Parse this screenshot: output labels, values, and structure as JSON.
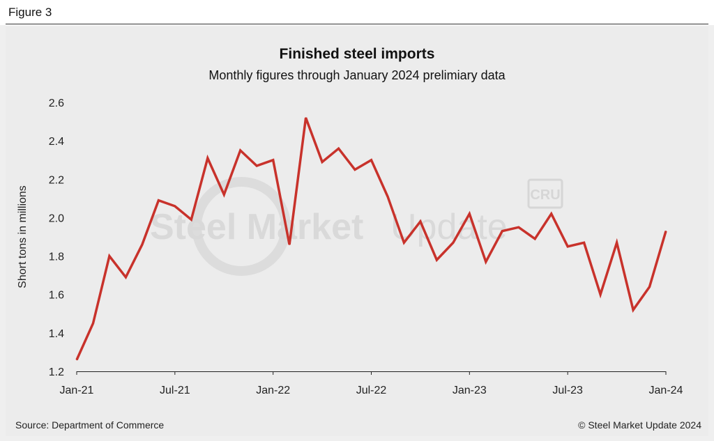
{
  "figure_label": "Figure 3",
  "watermark": {
    "text_left": "Steel Market",
    "text_right": "Update",
    "badge": "CRU"
  },
  "source": "Source: Department of Commerce",
  "copyright": "© Steel Market Update 2024",
  "colors": {
    "line": "#c8322b",
    "background": "#ececec",
    "watermark": "#d9d9d9"
  },
  "chart_data": {
    "type": "line",
    "title": "Finished steel imports",
    "subtitle": "Monthly figures through January 2024 prelimiary data",
    "xlabel": "",
    "ylabel": "Short tons in millions",
    "ylim": [
      1.2,
      2.6
    ],
    "yticks": [
      "1.2",
      "1.4",
      "1.6",
      "1.8",
      "2.0",
      "2.2",
      "2.4",
      "2.6"
    ],
    "grid": false,
    "xtick_labels": [
      {
        "index": 0,
        "label": "Jan-21"
      },
      {
        "index": 6,
        "label": "Jul-21"
      },
      {
        "index": 12,
        "label": "Jan-22"
      },
      {
        "index": 18,
        "label": "Jul-22"
      },
      {
        "index": 24,
        "label": "Jan-23"
      },
      {
        "index": 30,
        "label": "Jul-23"
      },
      {
        "index": 36,
        "label": "Jan-24"
      }
    ],
    "categories": [
      "Jan-21",
      "Feb-21",
      "Mar-21",
      "Apr-21",
      "May-21",
      "Jun-21",
      "Jul-21",
      "Aug-21",
      "Sep-21",
      "Oct-21",
      "Nov-21",
      "Dec-21",
      "Jan-22",
      "Feb-22",
      "Mar-22",
      "Apr-22",
      "May-22",
      "Jun-22",
      "Jul-22",
      "Aug-22",
      "Sep-22",
      "Oct-22",
      "Nov-22",
      "Dec-22",
      "Jan-23",
      "Feb-23",
      "Mar-23",
      "Apr-23",
      "May-23",
      "Jun-23",
      "Jul-23",
      "Aug-23",
      "Sep-23",
      "Oct-23",
      "Nov-23",
      "Dec-23",
      "Jan-24"
    ],
    "series": [
      {
        "name": "Finished steel imports",
        "values": [
          1.26,
          1.45,
          1.8,
          1.69,
          1.86,
          2.09,
          2.06,
          1.99,
          2.31,
          2.12,
          2.35,
          2.27,
          2.3,
          1.86,
          2.52,
          2.29,
          2.36,
          2.25,
          2.3,
          2.11,
          1.87,
          1.98,
          1.78,
          1.87,
          2.02,
          1.77,
          1.93,
          1.95,
          1.89,
          2.02,
          1.85,
          1.87,
          1.6,
          1.87,
          1.52,
          1.64,
          1.93
        ]
      }
    ]
  }
}
